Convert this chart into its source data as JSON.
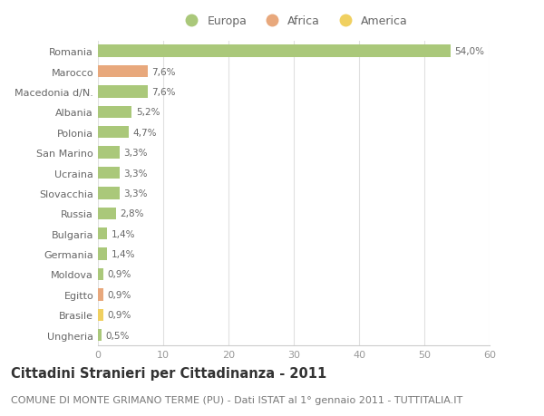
{
  "countries": [
    "Romania",
    "Marocco",
    "Macedonia d/N.",
    "Albania",
    "Polonia",
    "San Marino",
    "Ucraina",
    "Slovacchia",
    "Russia",
    "Bulgaria",
    "Germania",
    "Moldova",
    "Egitto",
    "Brasile",
    "Ungheria"
  ],
  "values": [
    54.0,
    7.6,
    7.6,
    5.2,
    4.7,
    3.3,
    3.3,
    3.3,
    2.8,
    1.4,
    1.4,
    0.9,
    0.9,
    0.9,
    0.5
  ],
  "labels": [
    "54,0%",
    "7,6%",
    "7,6%",
    "5,2%",
    "4,7%",
    "3,3%",
    "3,3%",
    "3,3%",
    "2,8%",
    "1,4%",
    "1,4%",
    "0,9%",
    "0,9%",
    "0,9%",
    "0,5%"
  ],
  "continents": [
    "Europa",
    "Africa",
    "Europa",
    "Europa",
    "Europa",
    "Europa",
    "Europa",
    "Europa",
    "Europa",
    "Europa",
    "Europa",
    "Europa",
    "Africa",
    "America",
    "Europa"
  ],
  "colors": {
    "Europa": "#aac87a",
    "Africa": "#e8a87c",
    "America": "#f0d060"
  },
  "xlim": [
    0,
    60
  ],
  "xticks": [
    0,
    10,
    20,
    30,
    40,
    50,
    60
  ],
  "background_color": "#ffffff",
  "grid_color": "#e0e0e0",
  "title": "Cittadini Stranieri per Cittadinanza - 2011",
  "subtitle": "COMUNE DI MONTE GRIMANO TERME (PU) - Dati ISTAT al 1° gennaio 2011 - TUTTITALIA.IT",
  "title_fontsize": 10.5,
  "subtitle_fontsize": 8,
  "bar_height": 0.6,
  "label_fontsize": 7.5,
  "ytick_fontsize": 8,
  "xtick_fontsize": 8,
  "legend_fontsize": 9,
  "legend_items": [
    "Europa",
    "Africa",
    "America"
  ],
  "legend_colors": [
    "#aac87a",
    "#e8a87c",
    "#f0d060"
  ]
}
